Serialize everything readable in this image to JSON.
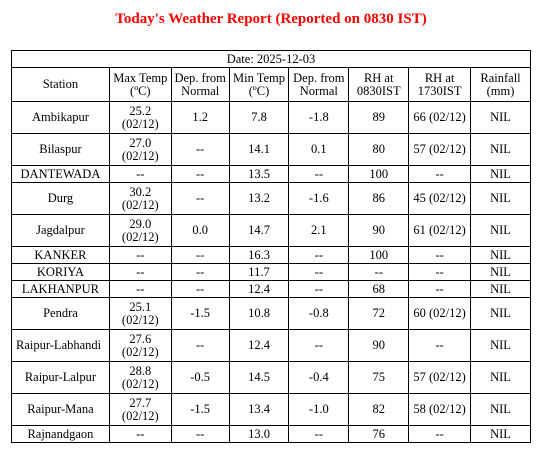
{
  "title": "Today's Weather Report (Reported on 0830 IST)",
  "date_label": "Date: 2025-12-03",
  "columns": [
    "Station",
    "Max Temp (ºC)",
    "Dep. from Normal",
    "Min Temp (ºC)",
    "Dep. from Normal",
    "RH at 0830IST",
    "RH at 1730IST",
    "Rainfall (mm)"
  ],
  "rows": [
    {
      "station": "Ambikapur",
      "max": "25.2 (02/12)",
      "dep1": "1.2",
      "min": "7.8",
      "dep2": "-1.8",
      "rh1": "89",
      "rh2": "66 (02/12)",
      "rain": "NIL"
    },
    {
      "station": "Bilaspur",
      "max": "27.0 (02/12)",
      "dep1": "--",
      "min": "14.1",
      "dep2": "0.1",
      "rh1": "80",
      "rh2": "57 (02/12)",
      "rain": "NIL"
    },
    {
      "station": "DANTEWADA",
      "max": "--",
      "dep1": "--",
      "min": "13.5",
      "dep2": "--",
      "rh1": "100",
      "rh2": "--",
      "rain": "NIL"
    },
    {
      "station": "Durg",
      "max": "30.2 (02/12)",
      "dep1": "--",
      "min": "13.2",
      "dep2": "-1.6",
      "rh1": "86",
      "rh2": "45 (02/12)",
      "rain": "NIL"
    },
    {
      "station": "Jagdalpur",
      "max": "29.0 (02/12)",
      "dep1": "0.0",
      "min": "14.7",
      "dep2": "2.1",
      "rh1": "90",
      "rh2": "61 (02/12)",
      "rain": "NIL"
    },
    {
      "station": "KANKER",
      "max": "--",
      "dep1": "--",
      "min": "16.3",
      "dep2": "--",
      "rh1": "100",
      "rh2": "--",
      "rain": "NIL"
    },
    {
      "station": "KORIYA",
      "max": "--",
      "dep1": "--",
      "min": "11.7",
      "dep2": "--",
      "rh1": "--",
      "rh2": "--",
      "rain": "NIL"
    },
    {
      "station": "LAKHANPUR",
      "max": "--",
      "dep1": "--",
      "min": "12.4",
      "dep2": "--",
      "rh1": "68",
      "rh2": "--",
      "rain": "NIL"
    },
    {
      "station": "Pendra",
      "max": "25.1 (02/12)",
      "dep1": "-1.5",
      "min": "10.8",
      "dep2": "-0.8",
      "rh1": "72",
      "rh2": "60 (02/12)",
      "rain": "NIL"
    },
    {
      "station": "Raipur-Labhandi",
      "max": "27.6 (02/12)",
      "dep1": "--",
      "min": "12.4",
      "dep2": "--",
      "rh1": "90",
      "rh2": "--",
      "rain": "NIL"
    },
    {
      "station": "Raipur-Lalpur",
      "max": "28.8 (02/12)",
      "dep1": "-0.5",
      "min": "14.5",
      "dep2": "-0.4",
      "rh1": "75",
      "rh2": "57 (02/12)",
      "rain": "NIL"
    },
    {
      "station": "Raipur-Mana",
      "max": "27.7 (02/12)",
      "dep1": "-1.5",
      "min": "13.4",
      "dep2": "-1.0",
      "rh1": "82",
      "rh2": "58 (02/12)",
      "rain": "NIL"
    },
    {
      "station": "Rajnandgaon",
      "max": "--",
      "dep1": "--",
      "min": "13.0",
      "dep2": "--",
      "rh1": "76",
      "rh2": "--",
      "rain": "NIL"
    }
  ]
}
